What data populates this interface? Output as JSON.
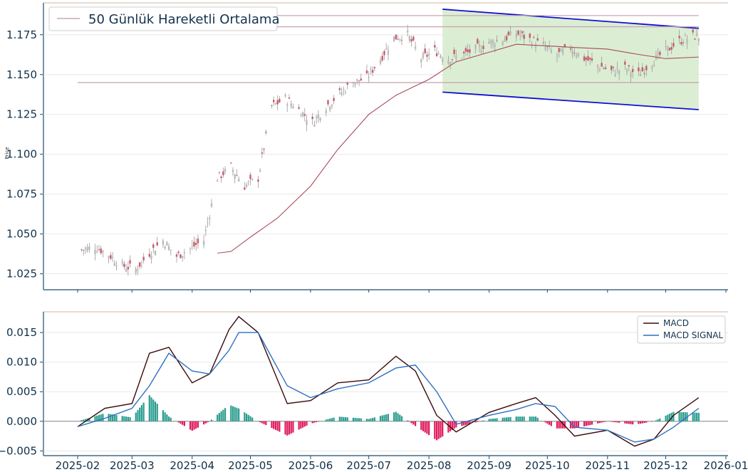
{
  "chart_data": [
    {
      "type": "line",
      "title": "",
      "ylabel": "Price",
      "ylim": [
        1.015,
        1.195
      ],
      "xlim": [
        "2025-01-28",
        "2026-01-06"
      ],
      "yticks": [
        "1.025",
        "1.050",
        "1.075",
        "1.100",
        "1.125",
        "1.150",
        "1.175"
      ],
      "grid": true,
      "legend": {
        "placement": "top-left",
        "entries": [
          "50 Günlük Hareketli Ortalama"
        ]
      },
      "colors": {
        "candles": "#9a9a9a",
        "ma": "#a84a5a",
        "channel": "#1010d0",
        "channel_fill": "#d5ebcc",
        "levels": "#c8a8b0"
      },
      "series": [
        {
          "name": "50 Günlük Hareketli Ortalama",
          "x": [
            "2025-04-14",
            "2025-04-21",
            "2025-05-01",
            "2025-05-15",
            "2025-06-01",
            "2025-06-15",
            "2025-07-01",
            "2025-07-15",
            "2025-08-01",
            "2025-08-15",
            "2025-09-01",
            "2025-09-15",
            "2025-10-01",
            "2025-10-15",
            "2025-11-01",
            "2025-11-15",
            "2025-12-01",
            "2025-12-18"
          ],
          "values": [
            1.038,
            1.039,
            1.048,
            1.06,
            1.08,
            1.103,
            1.125,
            1.137,
            1.147,
            1.158,
            1.164,
            1.169,
            1.168,
            1.167,
            1.166,
            1.163,
            1.16,
            1.161
          ]
        }
      ],
      "ohlc_close": {
        "x": [
          "2025-02-03",
          "2025-02-10",
          "2025-02-17",
          "2025-02-24",
          "2025-03-03",
          "2025-03-10",
          "2025-03-17",
          "2025-03-24",
          "2025-03-31",
          "2025-04-07",
          "2025-04-14",
          "2025-04-21",
          "2025-04-28",
          "2025-05-05",
          "2025-05-12",
          "2025-05-19",
          "2025-05-26",
          "2025-06-02",
          "2025-06-09",
          "2025-06-16",
          "2025-06-23",
          "2025-06-30",
          "2025-07-07",
          "2025-07-14",
          "2025-07-21",
          "2025-07-28",
          "2025-08-04",
          "2025-08-11",
          "2025-08-18",
          "2025-08-25",
          "2025-09-01",
          "2025-09-08",
          "2025-09-15",
          "2025-09-22",
          "2025-09-29",
          "2025-10-06",
          "2025-10-13",
          "2025-10-20",
          "2025-10-27",
          "2025-11-03",
          "2025-11-10",
          "2025-11-17",
          "2025-11-24",
          "2025-12-01",
          "2025-12-08",
          "2025-12-15"
        ],
        "values": [
          1.04,
          1.042,
          1.037,
          1.03,
          1.028,
          1.038,
          1.046,
          1.036,
          1.041,
          1.046,
          1.085,
          1.092,
          1.08,
          1.085,
          1.13,
          1.135,
          1.128,
          1.12,
          1.13,
          1.138,
          1.145,
          1.148,
          1.16,
          1.173,
          1.175,
          1.16,
          1.165,
          1.16,
          1.162,
          1.166,
          1.17,
          1.172,
          1.176,
          1.172,
          1.168,
          1.162,
          1.167,
          1.16,
          1.156,
          1.152,
          1.154,
          1.15,
          1.158,
          1.165,
          1.171,
          1.174
        ]
      },
      "annotations": {
        "horizontal_levels": [
          1.187,
          1.18,
          1.145
        ],
        "channel": {
          "x": [
            "2025-08-08",
            "2025-12-18"
          ],
          "upper": [
            1.191,
            1.179
          ],
          "lower": [
            1.139,
            1.128
          ]
        }
      }
    },
    {
      "type": "bar",
      "title": "",
      "ylim": [
        -0.0058,
        0.0185
      ],
      "yticks": [
        "−0.005",
        "0.000",
        "0.005",
        "0.010",
        "0.015"
      ],
      "legend": {
        "placement": "top-right",
        "entries": [
          "MACD",
          "MACD SIGNAL"
        ]
      },
      "colors": {
        "macd": "#3a0a0a",
        "signal": "#2d6fc0",
        "hist_pos": "#2a9d8f",
        "hist_neg": "#e0185a"
      },
      "series": [
        {
          "name": "MACD",
          "x": [
            "2025-02-01",
            "2025-02-15",
            "2025-03-01",
            "2025-03-10",
            "2025-03-20",
            "2025-04-01",
            "2025-04-10",
            "2025-04-20",
            "2025-04-25",
            "2025-05-05",
            "2025-05-20",
            "2025-06-01",
            "2025-06-15",
            "2025-07-01",
            "2025-07-15",
            "2025-07-25",
            "2025-08-05",
            "2025-08-15",
            "2025-09-01",
            "2025-09-15",
            "2025-09-25",
            "2025-10-05",
            "2025-10-15",
            "2025-11-01",
            "2025-11-15",
            "2025-11-25",
            "2025-12-05",
            "2025-12-18"
          ],
          "values": [
            -0.0009,
            0.0022,
            0.003,
            0.0115,
            0.0125,
            0.0065,
            0.008,
            0.0155,
            0.0177,
            0.015,
            0.003,
            0.0035,
            0.0065,
            0.007,
            0.011,
            0.0085,
            0.001,
            -0.0018,
            0.0015,
            0.003,
            0.004,
            0.001,
            -0.0025,
            -0.0015,
            -0.0042,
            -0.003,
            0.001,
            0.004
          ]
        },
        {
          "name": "MACD SIGNAL",
          "x": [
            "2025-02-01",
            "2025-02-15",
            "2025-03-01",
            "2025-03-10",
            "2025-03-20",
            "2025-04-01",
            "2025-04-10",
            "2025-04-20",
            "2025-04-25",
            "2025-05-05",
            "2025-05-20",
            "2025-06-01",
            "2025-06-15",
            "2025-07-01",
            "2025-07-15",
            "2025-07-25",
            "2025-08-05",
            "2025-08-15",
            "2025-09-01",
            "2025-09-15",
            "2025-09-25",
            "2025-10-05",
            "2025-10-15",
            "2025-11-01",
            "2025-11-15",
            "2025-11-25",
            "2025-12-05",
            "2025-12-18"
          ],
          "values": [
            -0.0009,
            0.0005,
            0.0022,
            0.006,
            0.0115,
            0.0085,
            0.008,
            0.012,
            0.015,
            0.015,
            0.006,
            0.004,
            0.0055,
            0.0065,
            0.009,
            0.0095,
            0.005,
            -0.0005,
            0.001,
            0.002,
            0.003,
            0.0025,
            -0.001,
            -0.0015,
            -0.0035,
            -0.003,
            -0.001,
            0.0022
          ]
        }
      ],
      "histogram_note": "MACD minus signal, drawn as bars"
    }
  ],
  "xaxis": {
    "ticks": [
      "2025-02",
      "2025-03",
      "2025-04",
      "2025-05",
      "2025-06",
      "2025-07",
      "2025-08",
      "2025-09",
      "2025-10",
      "2025-11",
      "2025-12",
      "2026-01"
    ]
  }
}
